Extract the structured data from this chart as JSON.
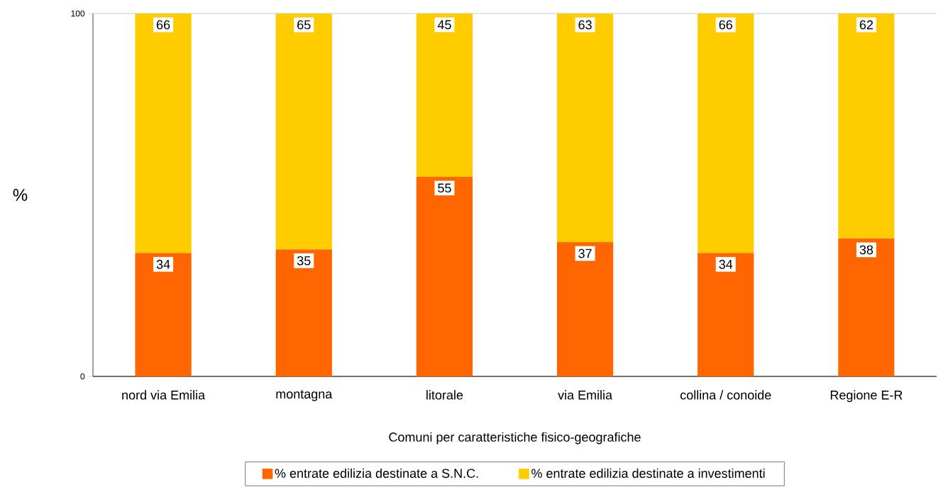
{
  "chart_data": {
    "type": "bar",
    "stacked": true,
    "xlabel": "Comuni per caratteristiche fisico-geografiche",
    "ylabel": "%",
    "categories": [
      "nord via Emilia",
      "montagna",
      "litorale",
      "via Emilia",
      "collina / conoide",
      "Regione E-R"
    ],
    "series": [
      {
        "name": "% entrate edilizia destinate a S.N.C.",
        "color": "#ff6600",
        "values": [
          34,
          35,
          55,
          37,
          34,
          38
        ]
      },
      {
        "name": "% entrate edilizia destinate a investimenti",
        "color": "#ffcc00",
        "values": [
          66,
          65,
          45,
          63,
          66,
          62
        ]
      }
    ],
    "ylim": [
      0,
      100
    ],
    "yticks": [
      0,
      100
    ],
    "grid": "y",
    "legend": "bottom",
    "data_labels": true
  }
}
